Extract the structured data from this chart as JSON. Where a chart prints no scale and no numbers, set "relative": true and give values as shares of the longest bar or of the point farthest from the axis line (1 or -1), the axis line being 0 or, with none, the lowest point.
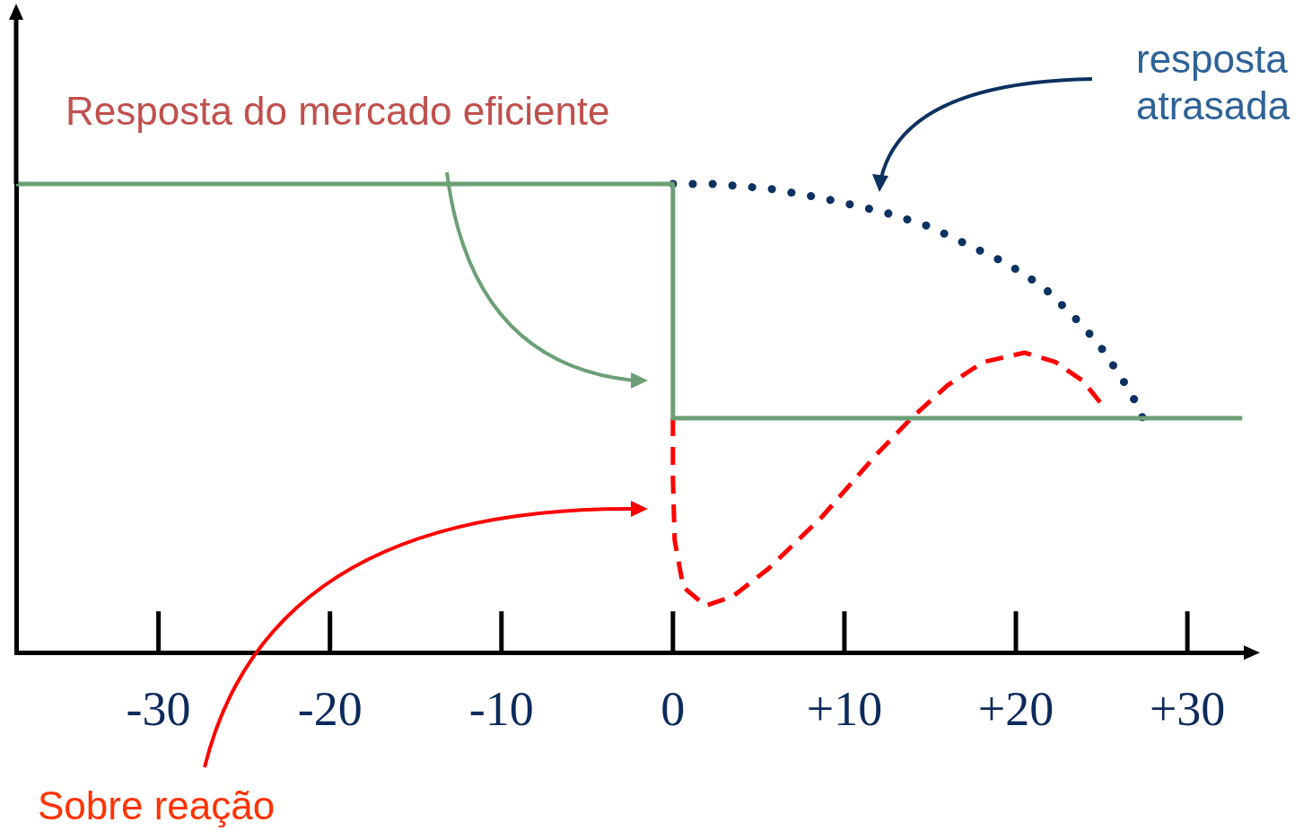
{
  "chart_data": {
    "type": "line",
    "relative": true,
    "xlim": [
      -38.3,
      33.5
    ],
    "xticks": [
      -30,
      -20,
      -10,
      0,
      {
        "value": 10,
        "label": "+10"
      },
      {
        "value": 20,
        "label": "+20"
      },
      {
        "value": 30,
        "label": "+30"
      }
    ],
    "series": [
      {
        "color": "#6c9f76",
        "line_style": "solid",
        "x": [
          -38.3,
          0,
          0,
          33.2
        ],
        "values": [
          1,
          1,
          0.5,
          0.5
        ]
      },
      {
        "color": "#0d3160",
        "line_style": "dotted",
        "x": [
          0,
          2.4,
          5.6,
          8.7,
          12.3,
          14.9,
          17.2,
          19.5,
          21.6,
          23.3,
          24.8,
          26.1,
          26.9,
          27.4
        ],
        "values": [
          1,
          1,
          0.99,
          0.97,
          0.94,
          0.91,
          0.87,
          0.83,
          0.78,
          0.72,
          0.66,
          0.59,
          0.54,
          0.5
        ]
      },
      {
        "color": "#ff0000",
        "line_style": "dashed",
        "x": [
          0,
          0,
          0.1,
          0.6,
          1.9,
          3.5,
          5.6,
          8.7,
          11.8,
          13.9,
          16,
          18.1,
          20.5,
          22.3,
          23.9,
          25
        ],
        "values": [
          0.5,
          0.37,
          0.24,
          0.14,
          0.1,
          0.12,
          0.18,
          0.29,
          0.42,
          0.5,
          0.57,
          0.62,
          0.64,
          0.62,
          0.58,
          0.53
        ]
      }
    ],
    "annotations": [
      "Resposta do mercado eficiente",
      "resposta\natrasada",
      "Sobre reação"
    ],
    "marker": "none",
    "grid": false,
    "legend": false,
    "tick_labels": "x"
  }
}
